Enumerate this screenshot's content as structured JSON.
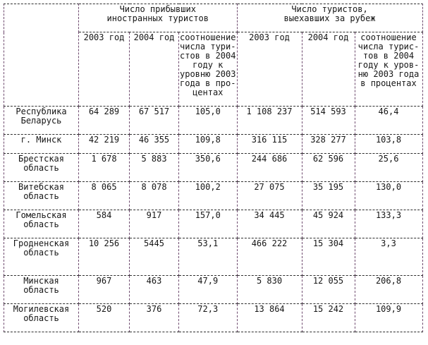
{
  "document": {
    "table": {
      "corner_label": "",
      "group_headers": [
        "Число прибывших\nиностранных туристов",
        "Число туристов,\nвыехавших за рубеж"
      ],
      "sub_headers": [
        "2003 год",
        "2004 год",
        "соотношение\nчисла тури-\nстов в 2004\nгоду к\nуровню 2003\nгода в про-\nцентах",
        "2003 год",
        "2004 год",
        "соотношение\nчисла турис-\nтов в 2004\nгоду к уров-\nню 2003 года\nв процентах"
      ],
      "rows": [
        {
          "region": "Республика Беларусь",
          "values": [
            "64 289",
            "67 517",
            "105,0",
            "1 108 237",
            "514 593",
            "46,4"
          ]
        },
        {
          "region": "г.  Минск",
          "values": [
            "42 219",
            "46 355",
            "109,8",
            "316 115",
            "328 277",
            "103,8"
          ]
        },
        {
          "region": "Брестская область",
          "values": [
            "1 678",
            "5 883",
            "350,6",
            "244 686",
            "62 596",
            "25,6"
          ]
        },
        {
          "region": "Витебская область",
          "values": [
            "8 065",
            "8 078",
            "100,2",
            "27 075",
            "35 195",
            "130,0"
          ]
        },
        {
          "region": "Гомельская область",
          "values": [
            "584",
            "917",
            "157,0",
            "34 445",
            "45 924",
            "133,3"
          ]
        },
        {
          "region": "Гродненская область",
          "values": [
            "10 256",
            "5445",
            "53,1",
            "466 222",
            "15 304",
            "3,3"
          ]
        },
        {
          "region": "Минская область",
          "values": [
            "967",
            "463",
            "47,9",
            "5 830",
            "12 055",
            "206,8"
          ]
        },
        {
          "region": "Могилевская область",
          "values": [
            "520",
            "376",
            "72,3",
            "13 864",
            "15 242",
            "109,9"
          ]
        }
      ]
    },
    "colors": {
      "text": "#161616",
      "horizontal_border": "#2e2e2e",
      "vertical_border": "#6e4a6e"
    }
  }
}
